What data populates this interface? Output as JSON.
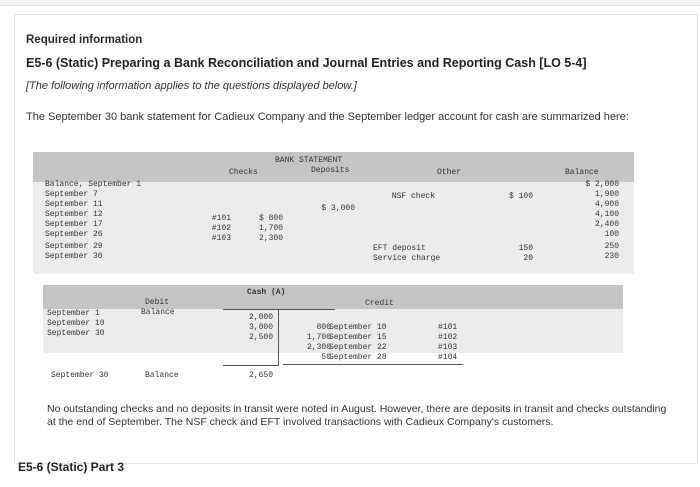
{
  "header": {
    "required": "Required information",
    "title": "E5-6 (Static) Preparing a Bank Reconciliation and Journal Entries and Reporting Cash [LO 5-4]",
    "note": "[The following information applies to the questions displayed below.]",
    "intro": "The September 30 bank statement for Cadieux Company and the September ledger account for cash are summarized here:"
  },
  "bank_statement": {
    "title": "BANK STATEMENT",
    "columns": {
      "checks": "Checks",
      "deposits": "Deposits",
      "other": "Other",
      "balance": "Balance"
    },
    "rows": [
      {
        "label": "Balance, September 1",
        "check_no": "",
        "check_amt": "",
        "deposit": "",
        "other_desc": "",
        "other_amt": "",
        "balance": "$ 2,000"
      },
      {
        "label": "September 7",
        "check_no": "",
        "check_amt": "",
        "deposit": "",
        "other_desc": "NSF check",
        "other_amt": "$ 100",
        "balance": "1,900"
      },
      {
        "label": "September 11",
        "check_no": "",
        "check_amt": "",
        "deposit": "$ 3,000",
        "other_desc": "",
        "other_amt": "",
        "balance": "4,900"
      },
      {
        "label": "September 12",
        "check_no": "#101",
        "check_amt": "$ 800",
        "deposit": "",
        "other_desc": "",
        "other_amt": "",
        "balance": "4,100"
      },
      {
        "label": "September 17",
        "check_no": "#102",
        "check_amt": "1,700",
        "deposit": "",
        "other_desc": "",
        "other_amt": "",
        "balance": "2,400"
      },
      {
        "label": "September 26",
        "check_no": "#103",
        "check_amt": "2,300",
        "deposit": "",
        "other_desc": "",
        "other_amt": "",
        "balance": "100"
      },
      {
        "label": "September 29",
        "check_no": "",
        "check_amt": "",
        "deposit": "",
        "other_desc": "EFT deposit",
        "other_amt": "150",
        "balance": "250"
      },
      {
        "label": "September 30",
        "check_no": "",
        "check_amt": "",
        "deposit": "",
        "other_desc": "Service charge",
        "other_amt": "20",
        "balance": "230"
      }
    ]
  },
  "cash_ledger": {
    "title": "Cash (A)",
    "debit_header": "Debit",
    "balance_header": "Balance",
    "credit_header": "Credit",
    "debits": [
      {
        "date": "September 1",
        "amount": "2,000"
      },
      {
        "date": "September 10",
        "amount": "3,000"
      },
      {
        "date": "September 30",
        "amount": "2,500"
      }
    ],
    "credits": [
      {
        "amount": "800",
        "date": "September 10",
        "ref": "#101"
      },
      {
        "amount": "1,700",
        "date": "September 15",
        "ref": "#102"
      },
      {
        "amount": "2,300",
        "date": "September 22",
        "ref": "#103"
      },
      {
        "amount": "50",
        "date": "September 28",
        "ref": "#104"
      }
    ],
    "ending_date": "September 30",
    "ending_label": "Balance",
    "ending_amount": "2,650"
  },
  "footnote": "No outstanding checks and no deposits in transit were noted in August. However, there are deposits in transit and checks outstanding at the end of September. The NSF check and EFT involved transactions with Cadieux Company's customers.",
  "part_label": "E5-6 (Static) Part 3"
}
